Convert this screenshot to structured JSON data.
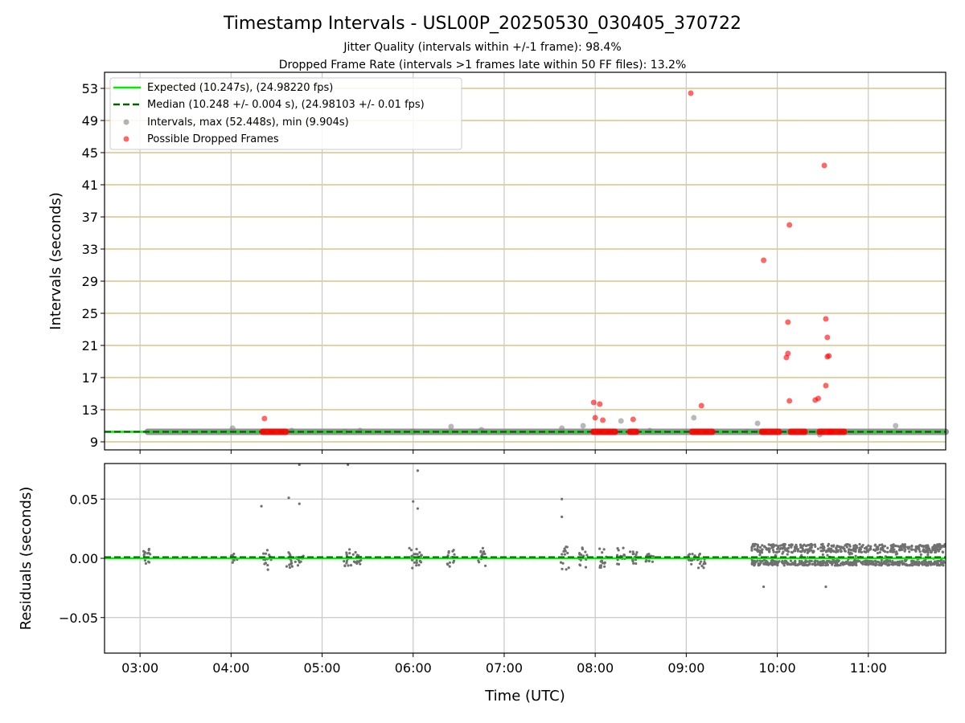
{
  "title": "Timestamp Intervals - USL00P_20250530_030405_370722",
  "subtitle_1": "Jitter Quality (intervals within +/-1 frame): 98.4%",
  "subtitle_2": "Dropped Frame Rate (intervals >1 frames late within 50 FF files): 13.2%",
  "colors": {
    "expected": "#00ee00",
    "median": "#006400",
    "intervals": "#808080",
    "dropped": "#ff0000",
    "hgrid": "#d4b86a",
    "vgrid": "#c8c8c8",
    "legend_border": "#cccccc"
  },
  "chart_data": [
    {
      "type": "scatter",
      "xlabel": "",
      "ylabel": "Intervals (seconds)",
      "xlim_hours": [
        2.61,
        11.85
      ],
      "ylim": [
        8.0,
        55.0
      ],
      "y_ticks": [
        9,
        13,
        17,
        21,
        25,
        29,
        33,
        37,
        41,
        45,
        49,
        53
      ],
      "x_tick_hours": [
        3,
        4,
        5,
        6,
        7,
        8,
        9,
        10,
        11
      ],
      "grid": "horizontal lines at y ticks (tan), vertical lines at x ticks (grey)",
      "legend_position": "top-left",
      "legend": {
        "expected": "Expected (10.247s), (24.98220 fps)",
        "median": "Median (10.248 +/- 0.004 s), (24.98103 +/- 0.01 fps)",
        "intervals": "Intervals, max (52.448s), min (9.904s)",
        "dropped": "Possible Dropped Frames"
      },
      "expected_y": 10.247,
      "median_y": 10.248,
      "interval_band": {
        "x_from": "03:05",
        "x_to": "11:51",
        "y": 10.25
      },
      "intervals_outliers": [
        [
          "04:01",
          10.7
        ],
        [
          "04:40",
          10.4
        ],
        [
          "05:15",
          10.3
        ],
        [
          "05:25",
          10.4
        ],
        [
          "06:00",
          10.3
        ],
        [
          "06:25",
          10.9
        ],
        [
          "06:45",
          10.5
        ],
        [
          "07:38",
          10.7
        ],
        [
          "07:52",
          11.0
        ],
        [
          "08:17",
          11.6
        ],
        [
          "08:36",
          10.4
        ],
        [
          "09:05",
          12.0
        ],
        [
          "09:40",
          10.3
        ],
        [
          "09:47",
          11.3
        ],
        [
          "10:28",
          9.9
        ],
        [
          "11:18",
          11.0
        ]
      ],
      "dropped_points": [
        [
          "04:22",
          11.9
        ],
        [
          "07:59",
          13.9
        ],
        [
          "08:00",
          12.0
        ],
        [
          "08:03",
          13.7
        ],
        [
          "08:05",
          11.7
        ],
        [
          "08:25",
          11.8
        ],
        [
          "09:03",
          52.4
        ],
        [
          "09:10",
          13.5
        ],
        [
          "09:51",
          31.6
        ],
        [
          "10:06",
          19.5
        ],
        [
          "10:07",
          20.0
        ],
        [
          "10:07",
          23.9
        ],
        [
          "10:08",
          14.1
        ],
        [
          "10:08",
          36.0
        ],
        [
          "10:25",
          14.2
        ],
        [
          "10:27",
          14.4
        ],
        [
          "10:31",
          43.4
        ],
        [
          "10:32",
          24.3
        ],
        [
          "10:32",
          16.0
        ],
        [
          "10:33",
          22.0
        ],
        [
          "10:33",
          19.6
        ],
        [
          "10:34",
          19.7
        ]
      ],
      "dropped_clusters": [
        {
          "x_from": "04:21",
          "x_to": "04:36",
          "y": 10.25
        },
        {
          "x_from": "07:59",
          "x_to": "08:13",
          "y": 10.25
        },
        {
          "x_from": "08:23",
          "x_to": "08:27",
          "y": 10.25
        },
        {
          "x_from": "09:04",
          "x_to": "09:17",
          "y": 10.25
        },
        {
          "x_from": "09:50",
          "x_to": "10:01",
          "y": 10.25
        },
        {
          "x_from": "10:09",
          "x_to": "10:18",
          "y": 10.25
        },
        {
          "x_from": "10:28",
          "x_to": "10:34",
          "y": 10.25
        },
        {
          "x_from": "10:35",
          "x_to": "10:44",
          "y": 10.25
        }
      ]
    },
    {
      "type": "scatter",
      "xlabel": "Time (UTC)",
      "ylabel": "Residuals (seconds)",
      "xlim_hours": [
        2.61,
        11.85
      ],
      "ylim": [
        -0.08,
        0.08
      ],
      "y_ticks": [
        -0.05,
        0.0,
        0.05
      ],
      "y_tick_labels": [
        "−0.05",
        "0.00",
        "0.05"
      ],
      "x_tick_labels": [
        "03:00",
        "04:00",
        "05:00",
        "06:00",
        "07:00",
        "08:00",
        "09:00",
        "10:00",
        "11:00"
      ],
      "x_tick_hours": [
        3,
        4,
        5,
        6,
        7,
        8,
        9,
        10,
        11
      ],
      "grid": "horizontal and vertical grey lines at ticks",
      "expected_y": 0.0,
      "median_y": 0.001,
      "residual_clusters": [
        {
          "x": "03:04",
          "lo": -0.006,
          "hi": 0.009
        },
        {
          "x": "04:02",
          "lo": -0.005,
          "hi": 0.004
        },
        {
          "x": "04:24",
          "lo": -0.01,
          "hi": 0.011
        },
        {
          "x": "04:38",
          "lo": -0.008,
          "hi": 0.005
        },
        {
          "x": "04:45",
          "lo": -0.006,
          "hi": 0.004
        },
        {
          "x": "05:17",
          "lo": -0.008,
          "hi": 0.008
        },
        {
          "x": "05:23",
          "lo": -0.006,
          "hi": 0.006
        },
        {
          "x": "06:00",
          "lo": -0.009,
          "hi": 0.009
        },
        {
          "x": "06:03",
          "lo": -0.006,
          "hi": 0.006
        },
        {
          "x": "06:25",
          "lo": -0.008,
          "hi": 0.01
        },
        {
          "x": "06:45",
          "lo": -0.007,
          "hi": 0.009
        },
        {
          "x": "07:40",
          "lo": -0.01,
          "hi": 0.01
        },
        {
          "x": "07:52",
          "lo": -0.008,
          "hi": 0.009
        },
        {
          "x": "08:05",
          "lo": -0.008,
          "hi": 0.011
        },
        {
          "x": "08:17",
          "lo": -0.006,
          "hi": 0.01
        },
        {
          "x": "08:25",
          "lo": -0.006,
          "hi": 0.006
        },
        {
          "x": "08:36",
          "lo": -0.004,
          "hi": 0.004
        },
        {
          "x": "09:04",
          "lo": -0.005,
          "hi": 0.004
        },
        {
          "x": "09:10",
          "lo": -0.009,
          "hi": 0.005
        }
      ],
      "residual_outliers": [
        [
          "04:20",
          0.044
        ],
        [
          "04:38",
          0.051
        ],
        [
          "04:45",
          0.046
        ],
        [
          "04:45",
          0.079
        ],
        [
          "05:17",
          0.079
        ],
        [
          "06:00",
          0.048
        ],
        [
          "06:03",
          0.042
        ],
        [
          "06:03",
          0.074
        ],
        [
          "07:38",
          0.05
        ],
        [
          "07:38",
          0.035
        ],
        [
          "09:51",
          -0.024
        ],
        [
          "10:32",
          -0.024
        ]
      ],
      "dense_band": {
        "x_from": "09:43",
        "x_to": "11:51",
        "lo": -0.006,
        "hi": 0.012
      }
    }
  ]
}
